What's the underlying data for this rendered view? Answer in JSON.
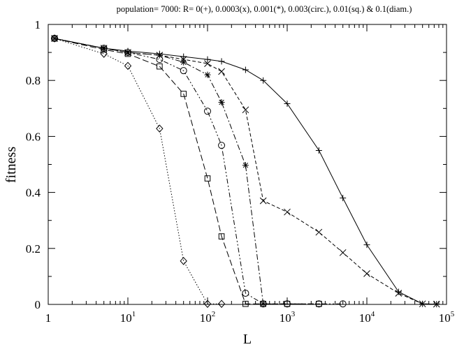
{
  "chart_data": {
    "type": "line",
    "title": "population= 7000: R= 0(+), 0.0003(x), 0.001(*), 0.003(circ.), 0.01(sq.) & 0.1(diam.)",
    "xlabel": "L",
    "ylabel": "fitness",
    "xscale": "log",
    "xlim": [
      1,
      100000
    ],
    "ylim": [
      0,
      1
    ],
    "grid": false,
    "legend": "none",
    "x_ticks": [
      {
        "value": 1,
        "base": "1",
        "exp": ""
      },
      {
        "value": 10,
        "base": "10",
        "exp": "1"
      },
      {
        "value": 100,
        "base": "10",
        "exp": "2"
      },
      {
        "value": 1000,
        "base": "10",
        "exp": "3"
      },
      {
        "value": 10000,
        "base": "10",
        "exp": "4"
      },
      {
        "value": 100000,
        "base": "10",
        "exp": "5"
      }
    ],
    "y_ticks": [
      {
        "value": 0,
        "label": "0"
      },
      {
        "value": 0.2,
        "label": "0.2"
      },
      {
        "value": 0.4,
        "label": "0.4"
      },
      {
        "value": 0.6,
        "label": "0.6"
      },
      {
        "value": 0.8,
        "label": "0.8"
      },
      {
        "value": 1,
        "label": "1"
      }
    ],
    "series": [
      {
        "marker": "plus",
        "dash": "",
        "points": [
          [
            1.2,
            0.95
          ],
          [
            5,
            0.915
          ],
          [
            10,
            0.905
          ],
          [
            25,
            0.895
          ],
          [
            50,
            0.885
          ],
          [
            100,
            0.875
          ],
          [
            150,
            0.868
          ],
          [
            300,
            0.838
          ],
          [
            500,
            0.8
          ],
          [
            1000,
            0.717
          ],
          [
            2500,
            0.55
          ],
          [
            5000,
            0.38
          ],
          [
            10000,
            0.213
          ],
          [
            25000,
            0.045
          ],
          [
            50000,
            0.002
          ],
          [
            75000,
            0.001
          ]
        ]
      },
      {
        "marker": "x",
        "dash": "5,3",
        "points": [
          [
            1.2,
            0.95
          ],
          [
            5,
            0.915
          ],
          [
            10,
            0.9
          ],
          [
            25,
            0.89
          ],
          [
            50,
            0.875
          ],
          [
            100,
            0.86
          ],
          [
            150,
            0.832
          ],
          [
            300,
            0.695
          ],
          [
            500,
            0.37
          ],
          [
            1000,
            0.33
          ],
          [
            2500,
            0.258
          ],
          [
            5000,
            0.185
          ],
          [
            10000,
            0.11
          ],
          [
            25000,
            0.04
          ],
          [
            50000,
            0.002
          ],
          [
            75000,
            0.001
          ]
        ]
      },
      {
        "marker": "star",
        "dash": "8,3,2,3",
        "points": [
          [
            1.2,
            0.95
          ],
          [
            5,
            0.915
          ],
          [
            10,
            0.9
          ],
          [
            25,
            0.89
          ],
          [
            50,
            0.865
          ],
          [
            100,
            0.82
          ],
          [
            150,
            0.722
          ],
          [
            300,
            0.497
          ],
          [
            500,
            0.002
          ]
        ]
      },
      {
        "marker": "circle",
        "dash": "7,3,2,3,2,3",
        "points": [
          [
            1.2,
            0.95
          ],
          [
            5,
            0.915
          ],
          [
            10,
            0.9
          ],
          [
            25,
            0.875
          ],
          [
            50,
            0.835
          ],
          [
            100,
            0.69
          ],
          [
            150,
            0.568
          ],
          [
            300,
            0.04
          ],
          [
            500,
            0.002
          ],
          [
            1000,
            0.002
          ],
          [
            2500,
            0.002
          ],
          [
            5000,
            0.002
          ]
        ]
      },
      {
        "marker": "square",
        "dash": "9,4",
        "points": [
          [
            1.2,
            0.95
          ],
          [
            5,
            0.91
          ],
          [
            10,
            0.895
          ],
          [
            25,
            0.85
          ],
          [
            50,
            0.752
          ],
          [
            100,
            0.45
          ],
          [
            150,
            0.243
          ],
          [
            300,
            0.002
          ],
          [
            500,
            0.002
          ],
          [
            1000,
            0.002
          ],
          [
            2500,
            0.002
          ]
        ]
      },
      {
        "marker": "diamond",
        "dash": "1.5,2.5",
        "points": [
          [
            1.2,
            0.95
          ],
          [
            5,
            0.895
          ],
          [
            10,
            0.852
          ],
          [
            25,
            0.628
          ],
          [
            50,
            0.155
          ],
          [
            100,
            0.002
          ],
          [
            150,
            0.002
          ]
        ]
      }
    ]
  }
}
